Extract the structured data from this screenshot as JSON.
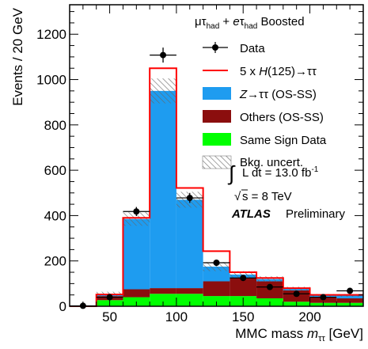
{
  "chart_data": {
    "type": "bar",
    "stacked": true,
    "ylabel": "Events / 20 GeV",
    "xlabel_prefix": "MMC mass ",
    "xlabel_var": "m",
    "xlabel_sub": "ττ",
    "xlabel_unit": " [GeV]",
    "xlim": [
      20,
      240
    ],
    "ylim": [
      0,
      1330
    ],
    "x_ticks": [
      50,
      100,
      150,
      200
    ],
    "y_ticks": [
      0,
      200,
      400,
      600,
      800,
      1000,
      1200
    ],
    "bin_edges": [
      20,
      40,
      60,
      80,
      100,
      120,
      140,
      160,
      180,
      200,
      220,
      240
    ],
    "series": [
      {
        "name": "Same Sign Data",
        "color": "#00ff00",
        "values": [
          0,
          27,
          40,
          55,
          55,
          45,
          45,
          35,
          20,
          15,
          15
        ]
      },
      {
        "name": "Others (OS-SS)",
        "color": "#8b0e0e",
        "values": [
          0,
          18,
          35,
          25,
          25,
          65,
          80,
          75,
          50,
          25,
          20
        ]
      },
      {
        "name": "Z→ττ (OS-SS)",
        "color": "#1e9cf0",
        "values": [
          0,
          7,
          310,
          870,
          390,
          65,
          15,
          10,
          8,
          8,
          13
        ]
      }
    ],
    "signal": {
      "name": "5 x H(125)→ττ",
      "color": "#ff0000",
      "totals": [
        0,
        52,
        390,
        1050,
        522,
        243,
        150,
        125,
        80,
        50,
        50
      ]
    },
    "bkg_uncert_label": "Bkg. uncert.",
    "bkg_uncert_half": [
      0,
      12,
      30,
      55,
      35,
      20,
      15,
      12,
      8,
      6,
      6
    ],
    "data": {
      "name": "Data",
      "x": [
        30,
        50,
        70,
        90,
        110,
        130,
        150,
        170,
        190,
        210,
        230
      ],
      "y": [
        2,
        40,
        418,
        1108,
        478,
        192,
        125,
        85,
        55,
        40,
        68
      ],
      "err": [
        0,
        7,
        20,
        33,
        22,
        14,
        11,
        9,
        8,
        7,
        8
      ]
    },
    "annotations": {
      "channel_a": "μτ",
      "channel_a_sub": "had",
      "channel_plus": " + ",
      "channel_b": "eτ",
      "channel_b_sub": "had",
      "channel_tail": " Boosted",
      "lumi_prefix": "L dt = 13.0 fb",
      "lumi_sup": "-1",
      "energy": "s = 8 TeV",
      "atlas": "ATLAS",
      "preliminary": "Preliminary"
    }
  }
}
